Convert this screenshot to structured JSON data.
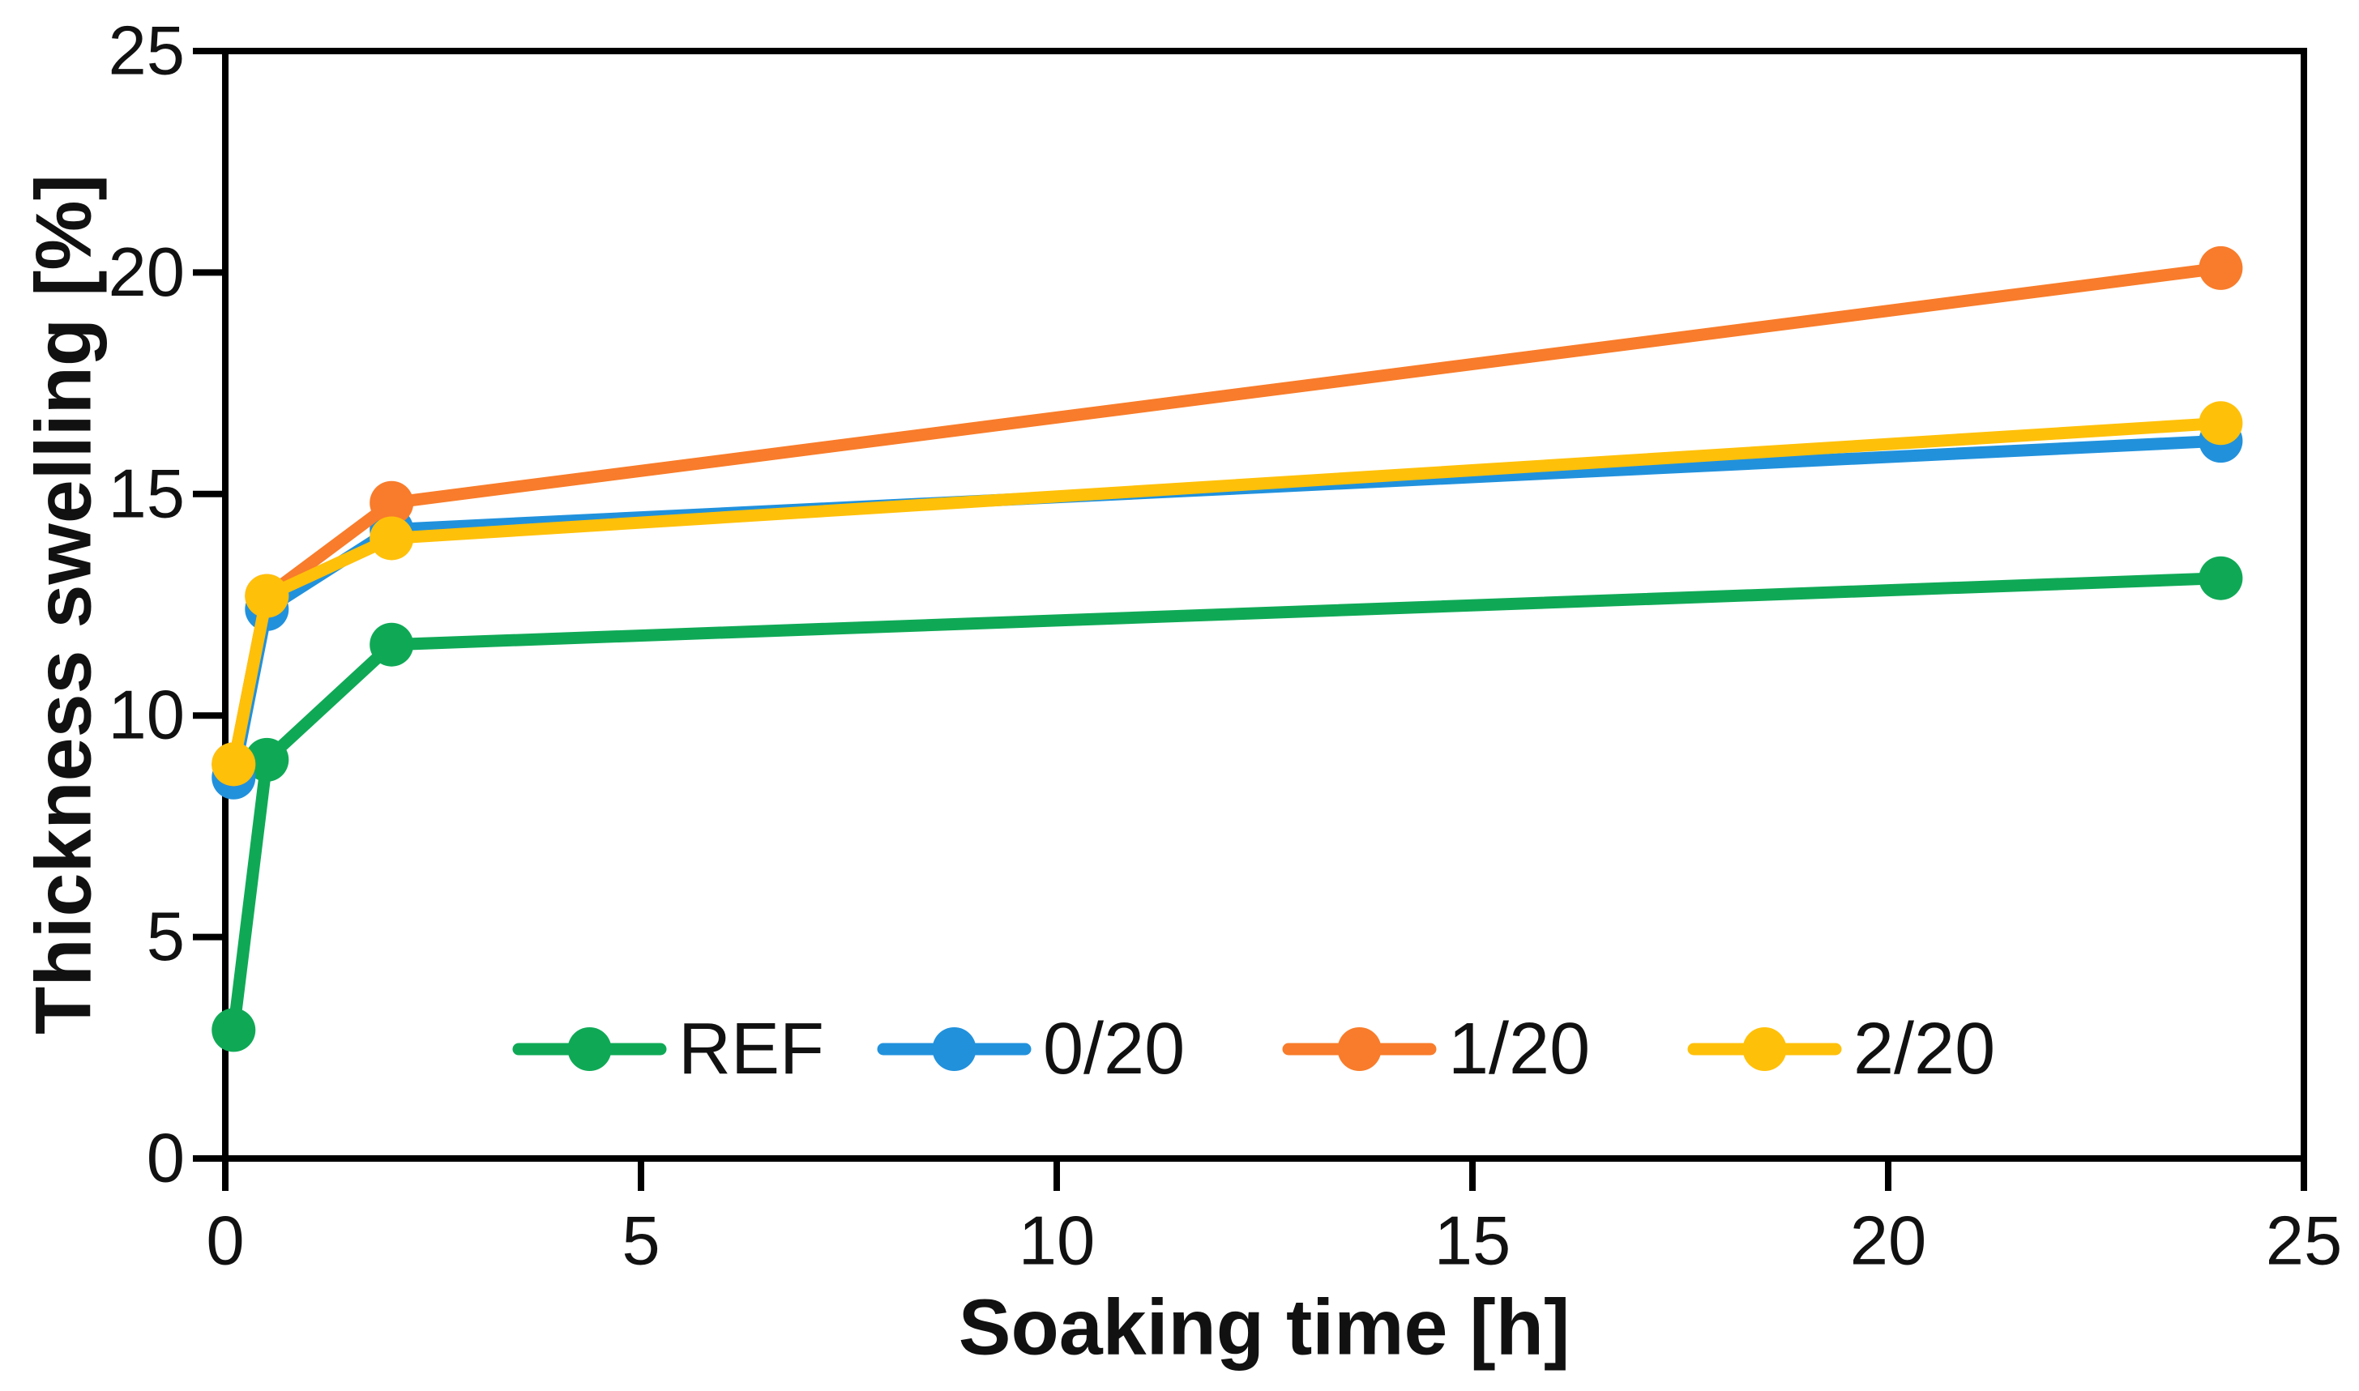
{
  "chart_data": {
    "type": "line",
    "title": "",
    "xlabel": "Soaking time [h]",
    "ylabel": "Thickness swelling [%]",
    "xlim": [
      0,
      25
    ],
    "ylim": [
      0,
      25
    ],
    "xticks": [
      0,
      5,
      10,
      15,
      20,
      25
    ],
    "yticks": [
      0,
      5,
      10,
      15,
      20,
      25
    ],
    "grid": false,
    "legend": {
      "position": "inside-bottom-center",
      "labels": [
        "REF",
        "0/20",
        "1/20",
        "2/20"
      ]
    },
    "x": [
      0.1,
      0.5,
      2,
      24
    ],
    "series": [
      {
        "name": "REF",
        "color": "#0FA956",
        "values": [
          2.9,
          9.0,
          11.6,
          13.1
        ]
      },
      {
        "name": "0/20",
        "color": "#2191DC",
        "values": [
          8.6,
          12.4,
          14.2,
          16.2
        ]
      },
      {
        "name": "1/20",
        "color": "#F87C2B",
        "values": [
          8.9,
          12.7,
          14.8,
          20.1
        ]
      },
      {
        "name": "2/20",
        "color": "#FFC00A",
        "values": [
          8.9,
          12.7,
          14.0,
          16.6
        ]
      }
    ],
    "marker": "circle",
    "colors": {
      "axis": "#000000",
      "text": "#111111",
      "background": "#ffffff"
    }
  }
}
